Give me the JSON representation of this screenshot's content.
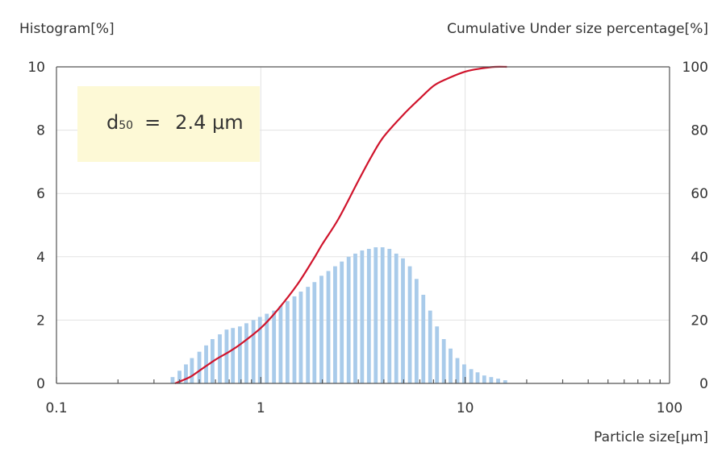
{
  "chart_data": {
    "type": "bar",
    "y_left_label": "Histogram[%]",
    "y_right_label": "Cumulative Under size percentage[%]",
    "xlabel": "Particle size[μm]",
    "x_scale": "log",
    "xlim": [
      0.1,
      100
    ],
    "ylim_left": [
      0,
      10
    ],
    "ylim_right": [
      0,
      100
    ],
    "x_ticks": [
      "0.1",
      "1",
      "10",
      "100"
    ],
    "y_left_ticks": [
      "0",
      "2",
      "4",
      "6",
      "8",
      "10"
    ],
    "y_right_ticks": [
      "0",
      "20",
      "40",
      "60",
      "80",
      "100"
    ],
    "grid": true,
    "annotation": {
      "main": "d",
      "sub": "50",
      "eq": "=",
      "value": "2.4 μm"
    },
    "series": [
      {
        "type": "bar",
        "color": "#a9cbea",
        "x": [
          0.37,
          0.4,
          0.43,
          0.46,
          0.5,
          0.54,
          0.58,
          0.63,
          0.68,
          0.73,
          0.79,
          0.85,
          0.92,
          0.99,
          1.07,
          1.16,
          1.25,
          1.35,
          1.46,
          1.57,
          1.7,
          1.83,
          1.98,
          2.14,
          2.31,
          2.49,
          2.69,
          2.9,
          3.13,
          3.38,
          3.65,
          3.94,
          4.26,
          4.6,
          4.96,
          5.36,
          5.78,
          6.24,
          6.74,
          7.28,
          7.86,
          8.48,
          9.16,
          9.89,
          10.7,
          11.5,
          12.4,
          13.4,
          14.5,
          15.7
        ],
        "values": [
          0.2,
          0.4,
          0.6,
          0.8,
          1.0,
          1.2,
          1.4,
          1.55,
          1.7,
          1.75,
          1.8,
          1.9,
          2.0,
          2.1,
          2.2,
          2.3,
          2.45,
          2.6,
          2.75,
          2.9,
          3.05,
          3.2,
          3.4,
          3.55,
          3.7,
          3.85,
          4.0,
          4.1,
          4.2,
          4.25,
          4.3,
          4.3,
          4.25,
          4.1,
          3.95,
          3.7,
          3.3,
          2.8,
          2.3,
          1.8,
          1.4,
          1.1,
          0.8,
          0.6,
          0.45,
          0.35,
          0.25,
          0.2,
          0.15,
          0.1
        ]
      },
      {
        "type": "line",
        "axis": "right",
        "color": "#d0142c",
        "x": [
          0.38,
          0.45,
          0.5,
          0.6,
          0.7,
          0.8,
          1.0,
          1.2,
          1.5,
          1.8,
          2.0,
          2.4,
          3.0,
          3.5,
          4.0,
          5.0,
          6.0,
          7.0,
          8.0,
          10.0,
          12.0,
          14.0,
          16.0
        ],
        "values": [
          0,
          2,
          4,
          7.5,
          10,
          12.5,
          17.5,
          23,
          31,
          39,
          44,
          52,
          64,
          72,
          78,
          85,
          90,
          94,
          96,
          98.5,
          99.5,
          100,
          100
        ]
      }
    ]
  }
}
